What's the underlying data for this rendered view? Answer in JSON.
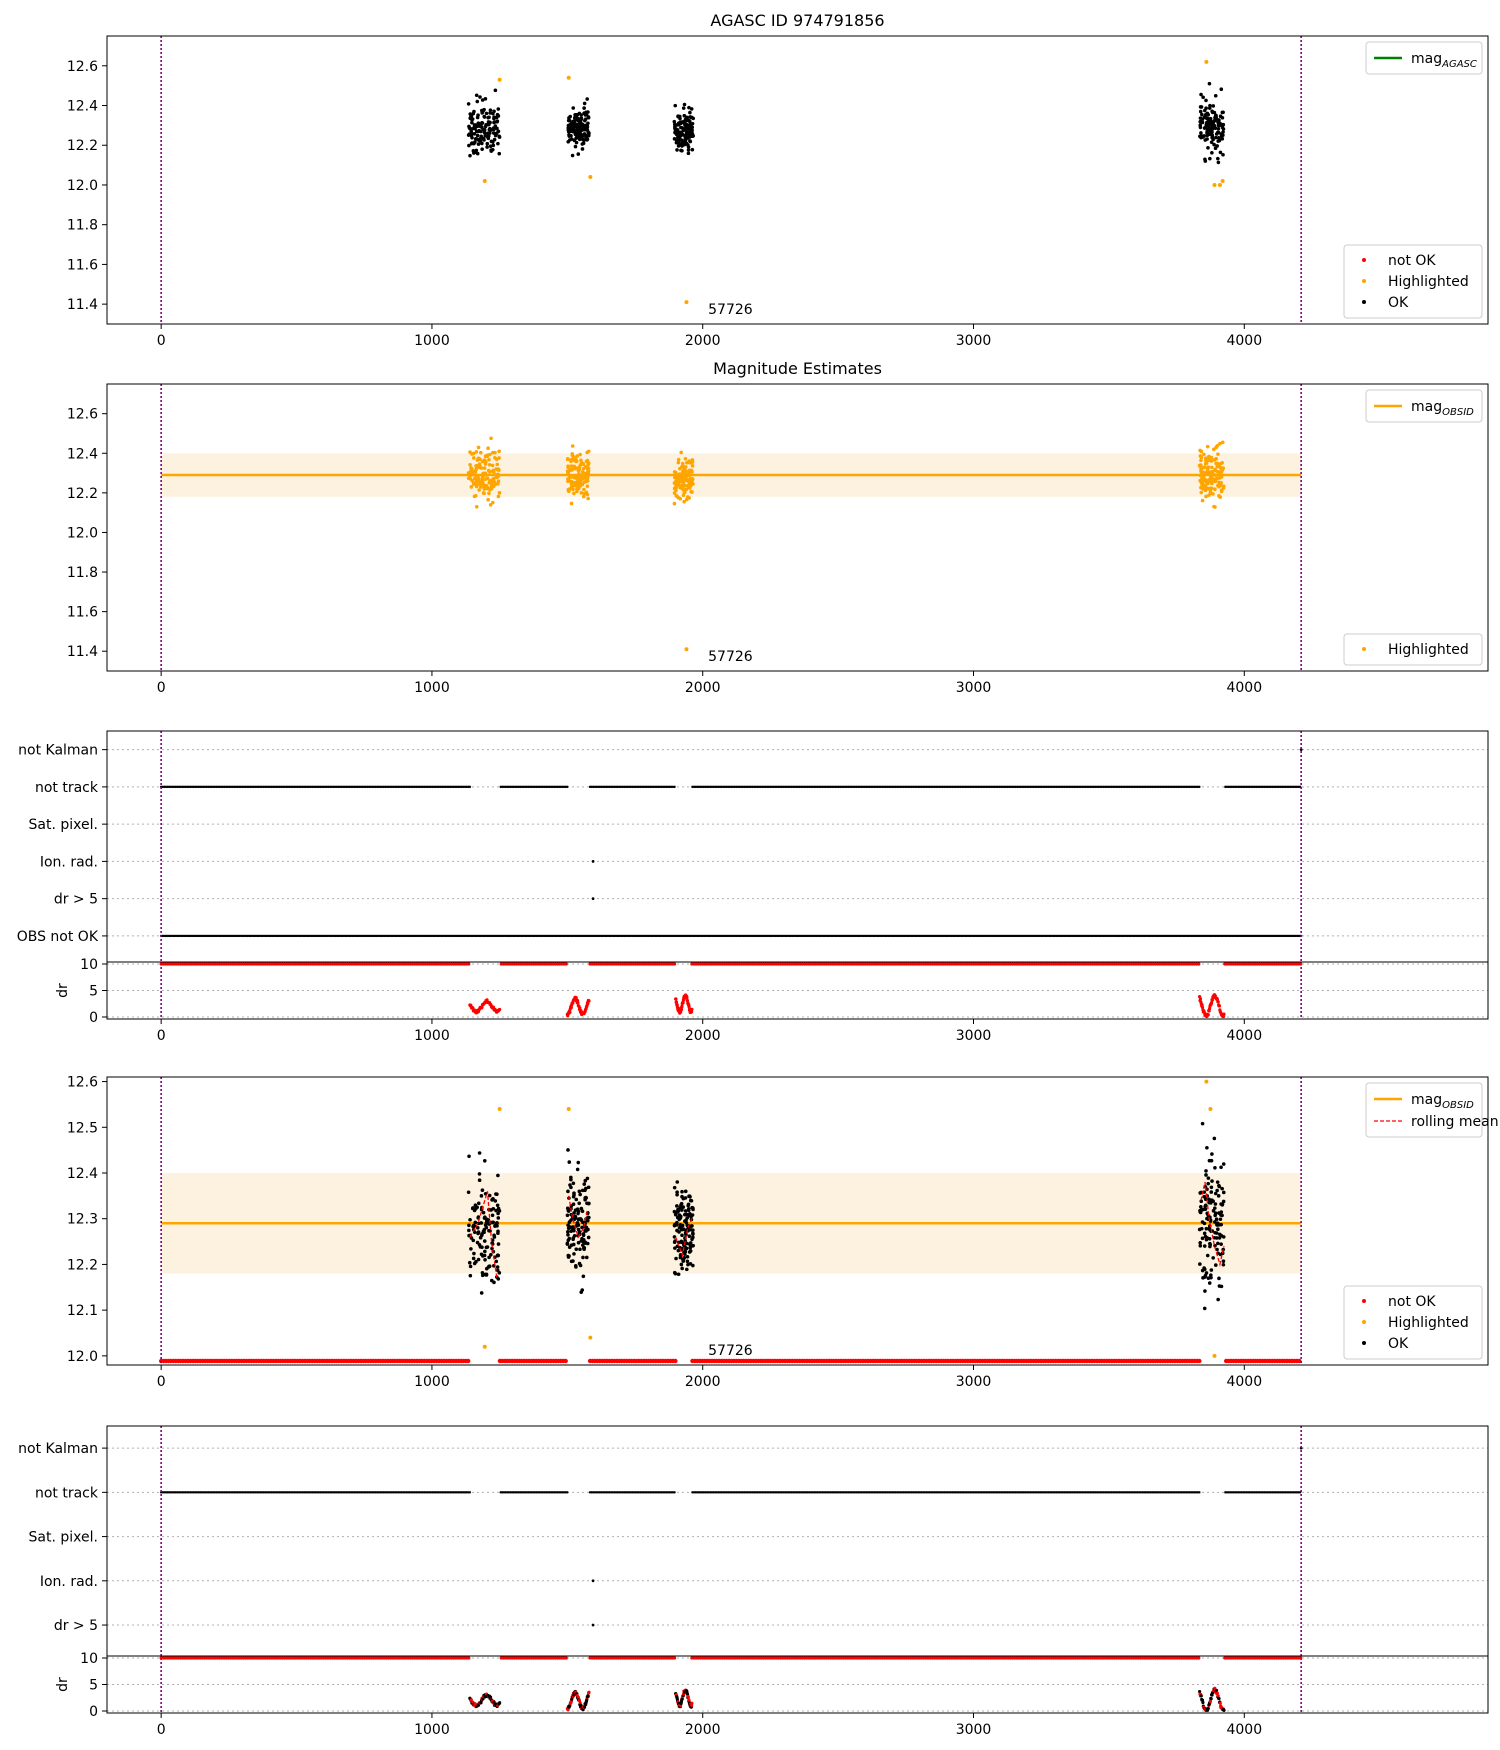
{
  "figure": {
    "colors": {
      "ok": "#000000",
      "not_ok": "#ff0000",
      "highlighted": "#ffa500",
      "mag_agasc": "#008000",
      "mag_obsid": "#ffa500",
      "band": "#fdf2e0",
      "vline": "#800080",
      "grid": "#b0b0b0"
    }
  },
  "chart_data": [
    {
      "type": "scatter",
      "title": "AGASC ID 974791856",
      "xlim": [
        -200,
        4900
      ],
      "ylim": [
        11.3,
        12.75
      ],
      "xticks": [
        "0",
        "1000",
        "2000",
        "3000",
        "4000"
      ],
      "yticks": [
        "11.4",
        "11.6",
        "11.8",
        "12.0",
        "12.2",
        "12.4",
        "12.6"
      ],
      "vlines": [
        0,
        4210
      ],
      "clusters": [
        {
          "x_range": [
            1135,
            1250
          ],
          "mag_center": 12.28,
          "mag_spread": 0.11
        },
        {
          "x_range": [
            1500,
            1580
          ],
          "mag_center": 12.29,
          "mag_spread": 0.09
        },
        {
          "x_range": [
            1895,
            1965
          ],
          "mag_center": 12.27,
          "mag_spread": 0.08
        },
        {
          "x_range": [
            3835,
            3925
          ],
          "mag_center": 12.29,
          "mag_spread": 0.11
        }
      ],
      "highlighted_points": [
        [
          1195,
          12.02
        ],
        [
          1250,
          12.53
        ],
        [
          1505,
          12.54
        ],
        [
          1585,
          12.04
        ],
        [
          1940,
          11.41
        ],
        [
          3860,
          12.62
        ],
        [
          3890,
          12.0
        ],
        [
          3910,
          12.0
        ],
        [
          3920,
          12.02
        ]
      ],
      "annotation": {
        "text": "57726",
        "x": 2020,
        "y": 11.35
      },
      "legend_lines": [
        {
          "label": "mag",
          "sub": "AGASC",
          "color": "#008000"
        }
      ],
      "legend_markers": [
        {
          "label": "not OK",
          "color": "#ff0000"
        },
        {
          "label": "Highlighted",
          "color": "#ffa500"
        },
        {
          "label": "OK",
          "color": "#000000"
        }
      ]
    },
    {
      "type": "scatter",
      "title": "Magnitude Estimates",
      "xlim": [
        -200,
        4900
      ],
      "ylim": [
        11.3,
        12.75
      ],
      "xticks": [
        "0",
        "1000",
        "2000",
        "3000",
        "4000"
      ],
      "yticks": [
        "11.4",
        "11.6",
        "11.8",
        "12.0",
        "12.2",
        "12.4",
        "12.6"
      ],
      "vlines": [
        0,
        4210
      ],
      "mag_obsid": 12.29,
      "band": [
        12.18,
        12.4
      ],
      "clusters": [
        {
          "x_range": [
            1135,
            1250
          ],
          "mag_center": 12.28,
          "mag_spread": 0.11
        },
        {
          "x_range": [
            1500,
            1580
          ],
          "mag_center": 12.29,
          "mag_spread": 0.09
        },
        {
          "x_range": [
            1895,
            1965
          ],
          "mag_center": 12.27,
          "mag_spread": 0.08
        },
        {
          "x_range": [
            3835,
            3925
          ],
          "mag_center": 12.29,
          "mag_spread": 0.11
        }
      ],
      "extra_points": [
        [
          1940,
          11.41
        ]
      ],
      "annotation": {
        "text": "57726",
        "x": 2020,
        "y": 11.35
      },
      "legend_lines": [
        {
          "label": "mag",
          "sub": "OBSID",
          "color": "#ffa500"
        }
      ],
      "legend_markers": [
        {
          "label": "Highlighted",
          "color": "#ffa500"
        }
      ]
    },
    {
      "type": "flags",
      "xlim": [
        -200,
        4900
      ],
      "xticks": [
        "0",
        "1000",
        "2000",
        "3000",
        "4000"
      ],
      "vlines": [
        0,
        4210
      ],
      "categories": [
        "not Kalman",
        "not track",
        "Sat. pixel.",
        "Ion. rad.",
        "dr > 5",
        "OBS not OK"
      ],
      "gaps": [
        [
          1140,
          1250
        ],
        [
          1500,
          1580
        ],
        [
          1900,
          1960
        ],
        [
          3835,
          3925
        ]
      ],
      "dr_ylabel": "dr",
      "dr_ylim": [
        0,
        10
      ],
      "dr_yticks": [
        "0",
        "5",
        "10"
      ],
      "dr_clusters": [
        [
          1140,
          1250,
          1.0,
          3.0
        ],
        [
          1500,
          1580,
          0.5,
          3.5
        ],
        [
          1900,
          1960,
          1.0,
          4.0
        ],
        [
          3835,
          3925,
          0.2,
          4.0
        ]
      ]
    },
    {
      "type": "scatter",
      "xlim": [
        -200,
        4900
      ],
      "ylim": [
        11.98,
        12.61
      ],
      "xticks": [
        "0",
        "1000",
        "2000",
        "3000",
        "4000"
      ],
      "yticks": [
        "12.0",
        "12.1",
        "12.2",
        "12.3",
        "12.4",
        "12.5",
        "12.6"
      ],
      "vlines": [
        0,
        4210
      ],
      "mag_obsid": 12.29,
      "band": [
        12.18,
        12.4
      ],
      "clusters": [
        {
          "x_range": [
            1135,
            1250
          ],
          "mag_center": 12.28,
          "mag_spread": 0.11
        },
        {
          "x_range": [
            1500,
            1580
          ],
          "mag_center": 12.29,
          "mag_spread": 0.09
        },
        {
          "x_range": [
            1895,
            1965
          ],
          "mag_center": 12.27,
          "mag_spread": 0.08
        },
        {
          "x_range": [
            3835,
            3925
          ],
          "mag_center": 12.29,
          "mag_spread": 0.11
        }
      ],
      "highlighted_points": [
        [
          1195,
          12.02
        ],
        [
          1250,
          12.54
        ],
        [
          1505,
          12.54
        ],
        [
          1585,
          12.04
        ],
        [
          3860,
          12.6
        ],
        [
          3875,
          12.54
        ],
        [
          3890,
          12.0
        ]
      ],
      "rolling_mean": [
        [
          [
            1140,
            12.26
          ],
          [
            1170,
            12.29
          ],
          [
            1190,
            12.33
          ],
          [
            1205,
            12.36
          ],
          [
            1220,
            12.25
          ],
          [
            1240,
            12.17
          ]
        ],
        [
          [
            1505,
            12.35
          ],
          [
            1520,
            12.3
          ],
          [
            1540,
            12.26
          ],
          [
            1560,
            12.28
          ],
          [
            1575,
            12.32
          ]
        ],
        [
          [
            1900,
            12.26
          ],
          [
            1925,
            12.22
          ],
          [
            1945,
            12.28
          ],
          [
            1960,
            12.3
          ]
        ],
        [
          [
            3840,
            12.34
          ],
          [
            3855,
            12.38
          ],
          [
            3870,
            12.3
          ],
          [
            3890,
            12.24
          ],
          [
            3910,
            12.2
          ],
          [
            3925,
            12.24
          ]
        ]
      ],
      "annotation": {
        "text": "57726",
        "x": 2020,
        "y": 11.99
      },
      "legend_lines": [
        {
          "label": "mag",
          "sub": "OBSID",
          "color": "#ffa500",
          "dash": false
        },
        {
          "label": "rolling mean",
          "sub": "",
          "color": "#ff0000",
          "dash": true
        }
      ],
      "legend_markers": [
        {
          "label": "not OK",
          "color": "#ff0000"
        },
        {
          "label": "Highlighted",
          "color": "#ffa500"
        },
        {
          "label": "OK",
          "color": "#000000"
        }
      ]
    },
    {
      "type": "flags",
      "xlim": [
        -200,
        4900
      ],
      "xticks": [
        "0",
        "1000",
        "2000",
        "3000",
        "4000"
      ],
      "vlines": [
        0,
        4210
      ],
      "categories": [
        "not Kalman",
        "not track",
        "Sat. pixel.",
        "Ion. rad.",
        "dr > 5"
      ],
      "gaps": [
        [
          1140,
          1250
        ],
        [
          1500,
          1580
        ],
        [
          1900,
          1960
        ],
        [
          3835,
          3925
        ]
      ],
      "dr_ylabel": "dr",
      "dr_ylim": [
        0,
        10
      ],
      "dr_yticks": [
        "0",
        "5",
        "10"
      ],
      "dr_clusters": [
        [
          1140,
          1250,
          1.0,
          3.0
        ],
        [
          1500,
          1580,
          0.5,
          3.5
        ],
        [
          1900,
          1960,
          1.0,
          4.0
        ],
        [
          3835,
          3925,
          0.2,
          4.0
        ]
      ]
    }
  ]
}
